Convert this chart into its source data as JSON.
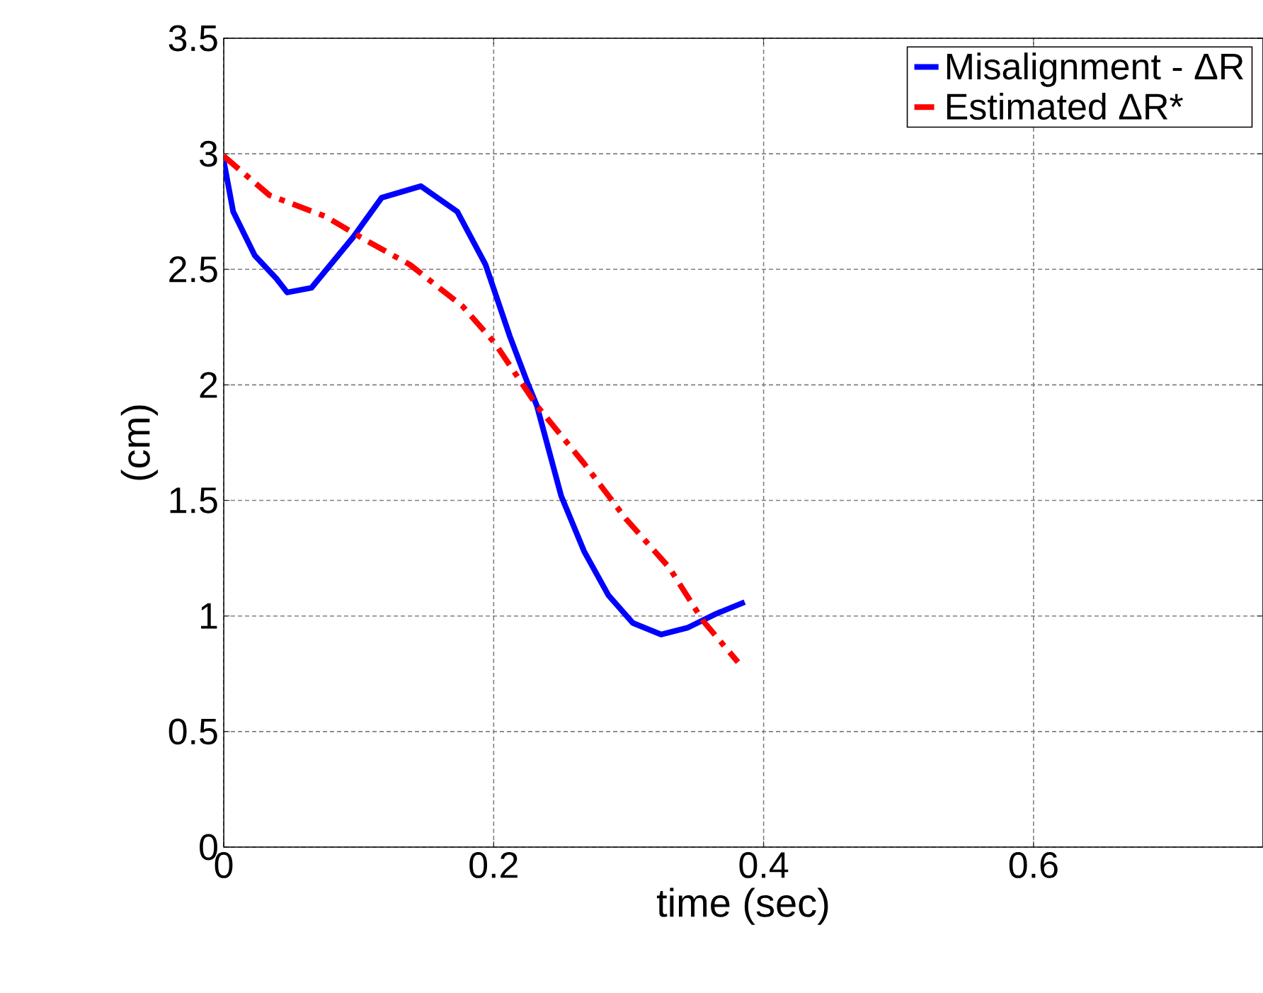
{
  "chart_data": {
    "type": "line",
    "xlabel": "time (sec)",
    "ylabel": "(cm)",
    "xlim": [
      0,
      0.77
    ],
    "ylim": [
      0,
      3.5
    ],
    "xticks": [
      0,
      0.2,
      0.4,
      0.6
    ],
    "yticks": [
      0,
      0.5,
      1,
      1.5,
      2,
      2.5,
      3,
      3.5
    ],
    "grid": true,
    "legend": "top right",
    "marker": "none",
    "series": [
      {
        "name": "Misalignment - ΔR",
        "color": "#0000ff",
        "line_style": "solid",
        "x": [
          0,
          0.007,
          0.023,
          0.039,
          0.047,
          0.065,
          0.096,
          0.117,
          0.146,
          0.173,
          0.194,
          0.212,
          0.225,
          0.232,
          0.25,
          0.267,
          0.285,
          0.303,
          0.324,
          0.344,
          0.365,
          0.386
        ],
        "values": [
          2.97,
          2.75,
          2.56,
          2.46,
          2.4,
          2.42,
          2.64,
          2.81,
          2.86,
          2.75,
          2.52,
          2.21,
          2.01,
          1.91,
          1.52,
          1.28,
          1.09,
          0.97,
          0.92,
          0.95,
          1.01,
          1.06
        ]
      },
      {
        "name": "Estimated ΔR*",
        "color": "#ff0000",
        "line_style": "dashdot",
        "x": [
          0,
          0.034,
          0.075,
          0.107,
          0.138,
          0.177,
          0.201,
          0.232,
          0.267,
          0.298,
          0.33,
          0.355,
          0.381
        ],
        "values": [
          2.99,
          2.82,
          2.73,
          2.62,
          2.52,
          2.34,
          2.18,
          1.91,
          1.66,
          1.42,
          1.21,
          0.98,
          0.8
        ]
      }
    ]
  }
}
